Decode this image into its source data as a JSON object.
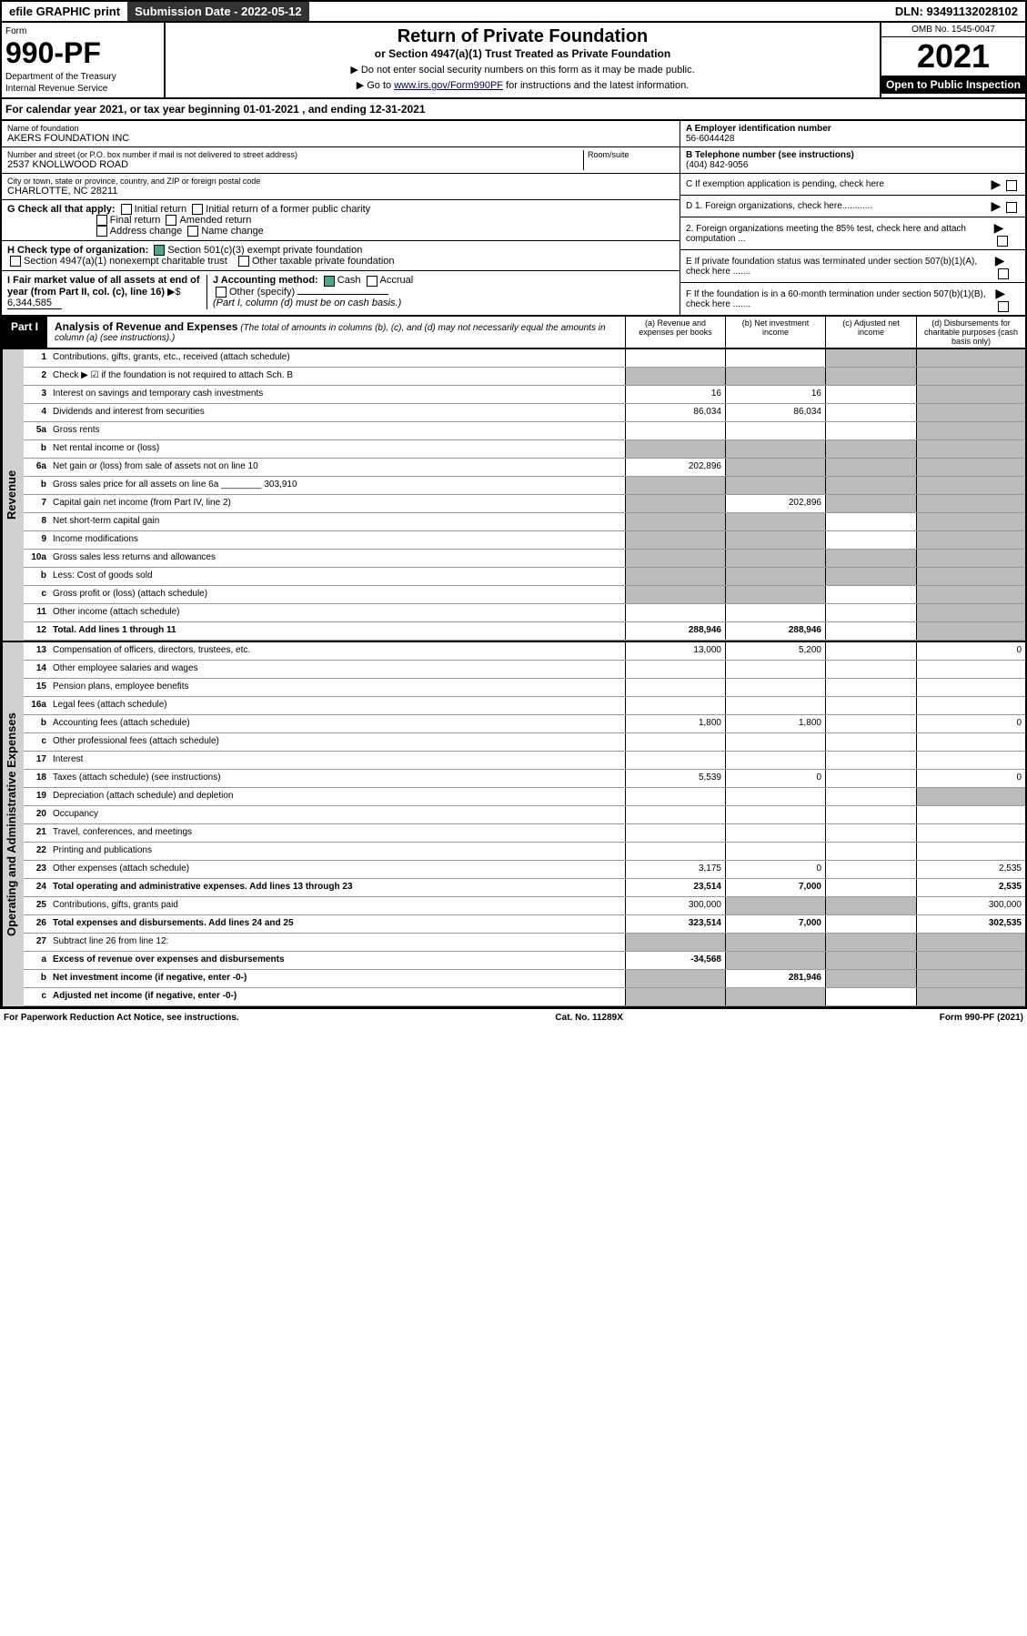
{
  "top": {
    "efile": "efile GRAPHIC print",
    "submission": "Submission Date - 2022-05-12",
    "dln": "DLN: 93491132028102"
  },
  "header": {
    "form_label": "Form",
    "form_number": "990-PF",
    "dept1": "Department of the Treasury",
    "dept2": "Internal Revenue Service",
    "title": "Return of Private Foundation",
    "subtitle": "or Section 4947(a)(1) Trust Treated as Private Foundation",
    "note1": "▶ Do not enter social security numbers on this form as it may be made public.",
    "note2_pre": "▶ Go to ",
    "note2_link": "www.irs.gov/Form990PF",
    "note2_post": " for instructions and the latest information.",
    "omb": "OMB No. 1545-0047",
    "year": "2021",
    "open": "Open to Public Inspection"
  },
  "calyear": "For calendar year 2021, or tax year beginning 01-01-2021            , and ending 12-31-2021",
  "info": {
    "name_label": "Name of foundation",
    "name": "AKERS FOUNDATION INC",
    "addr_label": "Number and street (or P.O. box number if mail is not delivered to street address)",
    "addr": "2537 KNOLLWOOD ROAD",
    "room_label": "Room/suite",
    "city_label": "City or town, state or province, country, and ZIP or foreign postal code",
    "city": "CHARLOTTE, NC  28211",
    "ein_label": "A Employer identification number",
    "ein": "56-6044428",
    "phone_label": "B Telephone number (see instructions)",
    "phone": "(404) 842-9056",
    "c_label": "C If exemption application is pending, check here",
    "d1": "D 1. Foreign organizations, check here............",
    "d2": "2. Foreign organizations meeting the 85% test, check here and attach computation ...",
    "e_label": "E  If private foundation status was terminated under section 507(b)(1)(A), check here .......",
    "f_label": "F  If the foundation is in a 60-month termination under section 507(b)(1)(B), check here .......",
    "g_label": "G Check all that apply:",
    "g_opts": [
      "Initial return",
      "Initial return of a former public charity",
      "Final return",
      "Amended return",
      "Address change",
      "Name change"
    ],
    "h_label": "H Check type of organization:",
    "h_501": "Section 501(c)(3) exempt private foundation",
    "h_4947": "Section 4947(a)(1) nonexempt charitable trust",
    "h_other": "Other taxable private foundation",
    "i_label": "I Fair market value of all assets at end of year (from Part II, col. (c), line 16)",
    "i_val": "6,344,585",
    "j_label": "J Accounting method:",
    "j_cash": "Cash",
    "j_accrual": "Accrual",
    "j_other": "Other (specify)",
    "j_note": "(Part I, column (d) must be on cash basis.)"
  },
  "part1": {
    "label": "Part I",
    "title": "Analysis of Revenue and Expenses",
    "desc": "(The total of amounts in columns (b), (c), and (d) may not necessarily equal the amounts in column (a) (see instructions).)",
    "col_a": "(a)  Revenue and expenses per books",
    "col_b": "(b)  Net investment income",
    "col_c": "(c)  Adjusted net income",
    "col_d": "(d)  Disbursements for charitable purposes (cash basis only)"
  },
  "sides": {
    "revenue": "Revenue",
    "expenses": "Operating and Administrative Expenses"
  },
  "rows": [
    {
      "n": "1",
      "d": "Contributions, gifts, grants, etc., received (attach schedule)",
      "a": "",
      "b": "",
      "c": "shaded",
      "dcol": "shaded"
    },
    {
      "n": "2",
      "d": "Check ▶ ☑ if the foundation is not required to attach Sch. B",
      "a": "shaded",
      "b": "shaded",
      "c": "shaded",
      "dcol": "shaded"
    },
    {
      "n": "3",
      "d": "Interest on savings and temporary cash investments",
      "a": "16",
      "b": "16",
      "c": "",
      "dcol": "shaded"
    },
    {
      "n": "4",
      "d": "Dividends and interest from securities",
      "a": "86,034",
      "b": "86,034",
      "c": "",
      "dcol": "shaded"
    },
    {
      "n": "5a",
      "d": "Gross rents",
      "a": "",
      "b": "",
      "c": "",
      "dcol": "shaded"
    },
    {
      "n": "b",
      "d": "Net rental income or (loss)",
      "a": "shaded",
      "b": "shaded",
      "c": "shaded",
      "dcol": "shaded"
    },
    {
      "n": "6a",
      "d": "Net gain or (loss) from sale of assets not on line 10",
      "a": "202,896",
      "b": "shaded",
      "c": "shaded",
      "dcol": "shaded"
    },
    {
      "n": "b",
      "d": "Gross sales price for all assets on line 6a ________ 303,910",
      "a": "shaded",
      "b": "shaded",
      "c": "shaded",
      "dcol": "shaded"
    },
    {
      "n": "7",
      "d": "Capital gain net income (from Part IV, line 2)",
      "a": "shaded",
      "b": "202,896",
      "c": "shaded",
      "dcol": "shaded"
    },
    {
      "n": "8",
      "d": "Net short-term capital gain",
      "a": "shaded",
      "b": "shaded",
      "c": "",
      "dcol": "shaded"
    },
    {
      "n": "9",
      "d": "Income modifications",
      "a": "shaded",
      "b": "shaded",
      "c": "",
      "dcol": "shaded"
    },
    {
      "n": "10a",
      "d": "Gross sales less returns and allowances",
      "a": "shaded",
      "b": "shaded",
      "c": "shaded",
      "dcol": "shaded"
    },
    {
      "n": "b",
      "d": "Less: Cost of goods sold",
      "a": "shaded",
      "b": "shaded",
      "c": "shaded",
      "dcol": "shaded"
    },
    {
      "n": "c",
      "d": "Gross profit or (loss) (attach schedule)",
      "a": "shaded",
      "b": "shaded",
      "c": "",
      "dcol": "shaded"
    },
    {
      "n": "11",
      "d": "Other income (attach schedule)",
      "a": "",
      "b": "",
      "c": "",
      "dcol": "shaded"
    },
    {
      "n": "12",
      "d": "Total. Add lines 1 through 11",
      "a": "288,946",
      "b": "288,946",
      "c": "",
      "dcol": "shaded",
      "bold": true
    }
  ],
  "exp_rows": [
    {
      "n": "13",
      "d": "Compensation of officers, directors, trustees, etc.",
      "a": "13,000",
      "b": "5,200",
      "c": "",
      "dcol": "0"
    },
    {
      "n": "14",
      "d": "Other employee salaries and wages",
      "a": "",
      "b": "",
      "c": "",
      "dcol": ""
    },
    {
      "n": "15",
      "d": "Pension plans, employee benefits",
      "a": "",
      "b": "",
      "c": "",
      "dcol": ""
    },
    {
      "n": "16a",
      "d": "Legal fees (attach schedule)",
      "a": "",
      "b": "",
      "c": "",
      "dcol": ""
    },
    {
      "n": "b",
      "d": "Accounting fees (attach schedule)",
      "a": "1,800",
      "b": "1,800",
      "c": "",
      "dcol": "0"
    },
    {
      "n": "c",
      "d": "Other professional fees (attach schedule)",
      "a": "",
      "b": "",
      "c": "",
      "dcol": ""
    },
    {
      "n": "17",
      "d": "Interest",
      "a": "",
      "b": "",
      "c": "",
      "dcol": ""
    },
    {
      "n": "18",
      "d": "Taxes (attach schedule) (see instructions)",
      "a": "5,539",
      "b": "0",
      "c": "",
      "dcol": "0"
    },
    {
      "n": "19",
      "d": "Depreciation (attach schedule) and depletion",
      "a": "",
      "b": "",
      "c": "",
      "dcol": "shaded"
    },
    {
      "n": "20",
      "d": "Occupancy",
      "a": "",
      "b": "",
      "c": "",
      "dcol": ""
    },
    {
      "n": "21",
      "d": "Travel, conferences, and meetings",
      "a": "",
      "b": "",
      "c": "",
      "dcol": ""
    },
    {
      "n": "22",
      "d": "Printing and publications",
      "a": "",
      "b": "",
      "c": "",
      "dcol": ""
    },
    {
      "n": "23",
      "d": "Other expenses (attach schedule)",
      "a": "3,175",
      "b": "0",
      "c": "",
      "dcol": "2,535"
    },
    {
      "n": "24",
      "d": "Total operating and administrative expenses. Add lines 13 through 23",
      "a": "23,514",
      "b": "7,000",
      "c": "",
      "dcol": "2,535",
      "bold": true
    },
    {
      "n": "25",
      "d": "Contributions, gifts, grants paid",
      "a": "300,000",
      "b": "shaded",
      "c": "shaded",
      "dcol": "300,000"
    },
    {
      "n": "26",
      "d": "Total expenses and disbursements. Add lines 24 and 25",
      "a": "323,514",
      "b": "7,000",
      "c": "",
      "dcol": "302,535",
      "bold": true
    },
    {
      "n": "27",
      "d": "Subtract line 26 from line 12:",
      "a": "shaded",
      "b": "shaded",
      "c": "shaded",
      "dcol": "shaded"
    },
    {
      "n": "a",
      "d": "Excess of revenue over expenses and disbursements",
      "a": "-34,568",
      "b": "shaded",
      "c": "shaded",
      "dcol": "shaded",
      "bold": true
    },
    {
      "n": "b",
      "d": "Net investment income (if negative, enter -0-)",
      "a": "shaded",
      "b": "281,946",
      "c": "shaded",
      "dcol": "shaded",
      "bold": true
    },
    {
      "n": "c",
      "d": "Adjusted net income (if negative, enter -0-)",
      "a": "shaded",
      "b": "shaded",
      "c": "",
      "dcol": "shaded",
      "bold": true
    }
  ],
  "footer": {
    "left": "For Paperwork Reduction Act Notice, see instructions.",
    "mid": "Cat. No. 11289X",
    "right": "Form 990-PF (2021)"
  }
}
